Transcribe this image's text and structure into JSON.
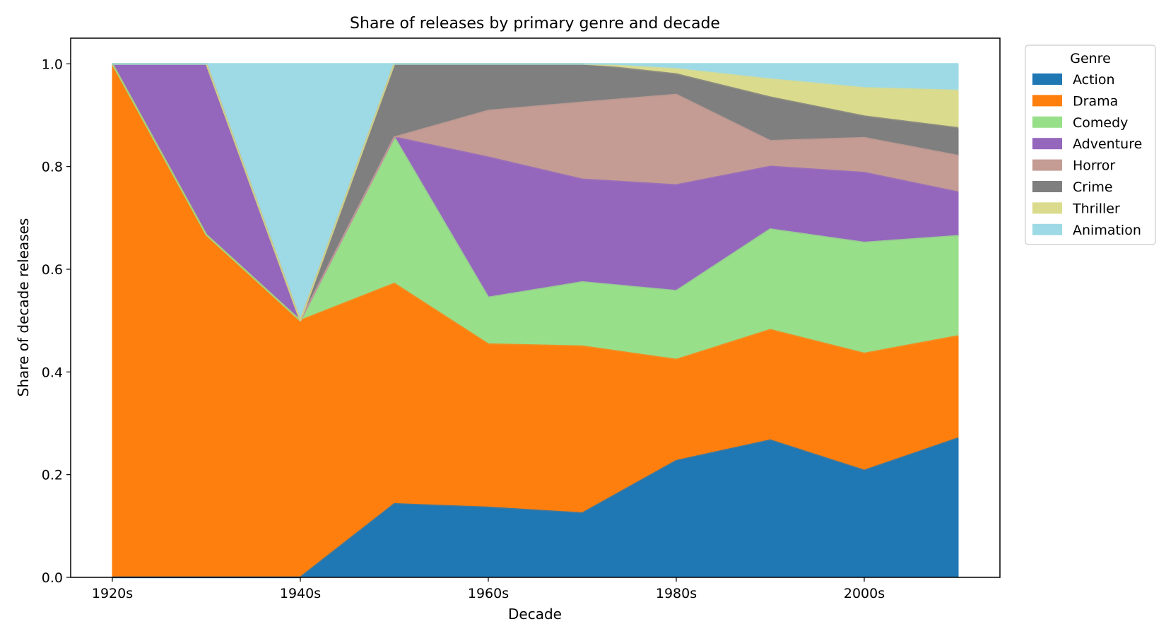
{
  "chart_data": {
    "type": "area",
    "stacked": true,
    "title": "Share of releases by primary genre and decade",
    "xlabel": "Decade",
    "ylabel": "Share of decade releases",
    "x": [
      "1920s",
      "1930s",
      "1940s",
      "1950s",
      "1960s",
      "1970s",
      "1980s",
      "1990s",
      "2000s",
      "2010s"
    ],
    "x_tick_labels": [
      "1920s",
      "1940s",
      "1960s",
      "1980s",
      "2000s"
    ],
    "y_tick_labels": [
      "0.0",
      "0.2",
      "0.4",
      "0.6",
      "0.8",
      "1.0"
    ],
    "ylim": [
      0,
      1.05
    ],
    "grid": false,
    "legend": {
      "title": "Genre",
      "placement": "outside-top-right"
    },
    "series": [
      {
        "name": "Action",
        "color": "#1f77b4",
        "values": [
          0.0,
          0.0,
          0.0,
          0.143,
          0.136,
          0.125,
          0.227,
          0.267,
          0.208,
          0.271
        ]
      },
      {
        "name": "Drama",
        "color": "#ff7f0e",
        "values": [
          1.0,
          0.667,
          0.5,
          0.429,
          0.318,
          0.325,
          0.197,
          0.215,
          0.228,
          0.199
        ]
      },
      {
        "name": "Comedy",
        "color": "#98df8a",
        "values": [
          0.0,
          0.0,
          0.0,
          0.285,
          0.091,
          0.125,
          0.134,
          0.196,
          0.216,
          0.195
        ]
      },
      {
        "name": "Adventure",
        "color": "#9467bd",
        "values": [
          0.0,
          0.333,
          0.0,
          0.0,
          0.273,
          0.2,
          0.206,
          0.122,
          0.136,
          0.085
        ]
      },
      {
        "name": "Horror",
        "color": "#c49c94",
        "values": [
          0.0,
          0.0,
          0.0,
          0.0,
          0.091,
          0.15,
          0.176,
          0.05,
          0.068,
          0.071
        ]
      },
      {
        "name": "Crime",
        "color": "#7f7f7f",
        "values": [
          0.0,
          0.0,
          0.0,
          0.143,
          0.091,
          0.075,
          0.04,
          0.085,
          0.042,
          0.054
        ]
      },
      {
        "name": "Thriller",
        "color": "#dbdb8d",
        "values": [
          0.0,
          0.0,
          0.0,
          0.0,
          0.0,
          0.0,
          0.01,
          0.035,
          0.055,
          0.073
        ]
      },
      {
        "name": "Animation",
        "color": "#9edae5",
        "values": [
          0.0,
          0.0,
          0.5,
          0.0,
          0.0,
          0.0,
          0.01,
          0.03,
          0.047,
          0.052
        ]
      }
    ]
  }
}
